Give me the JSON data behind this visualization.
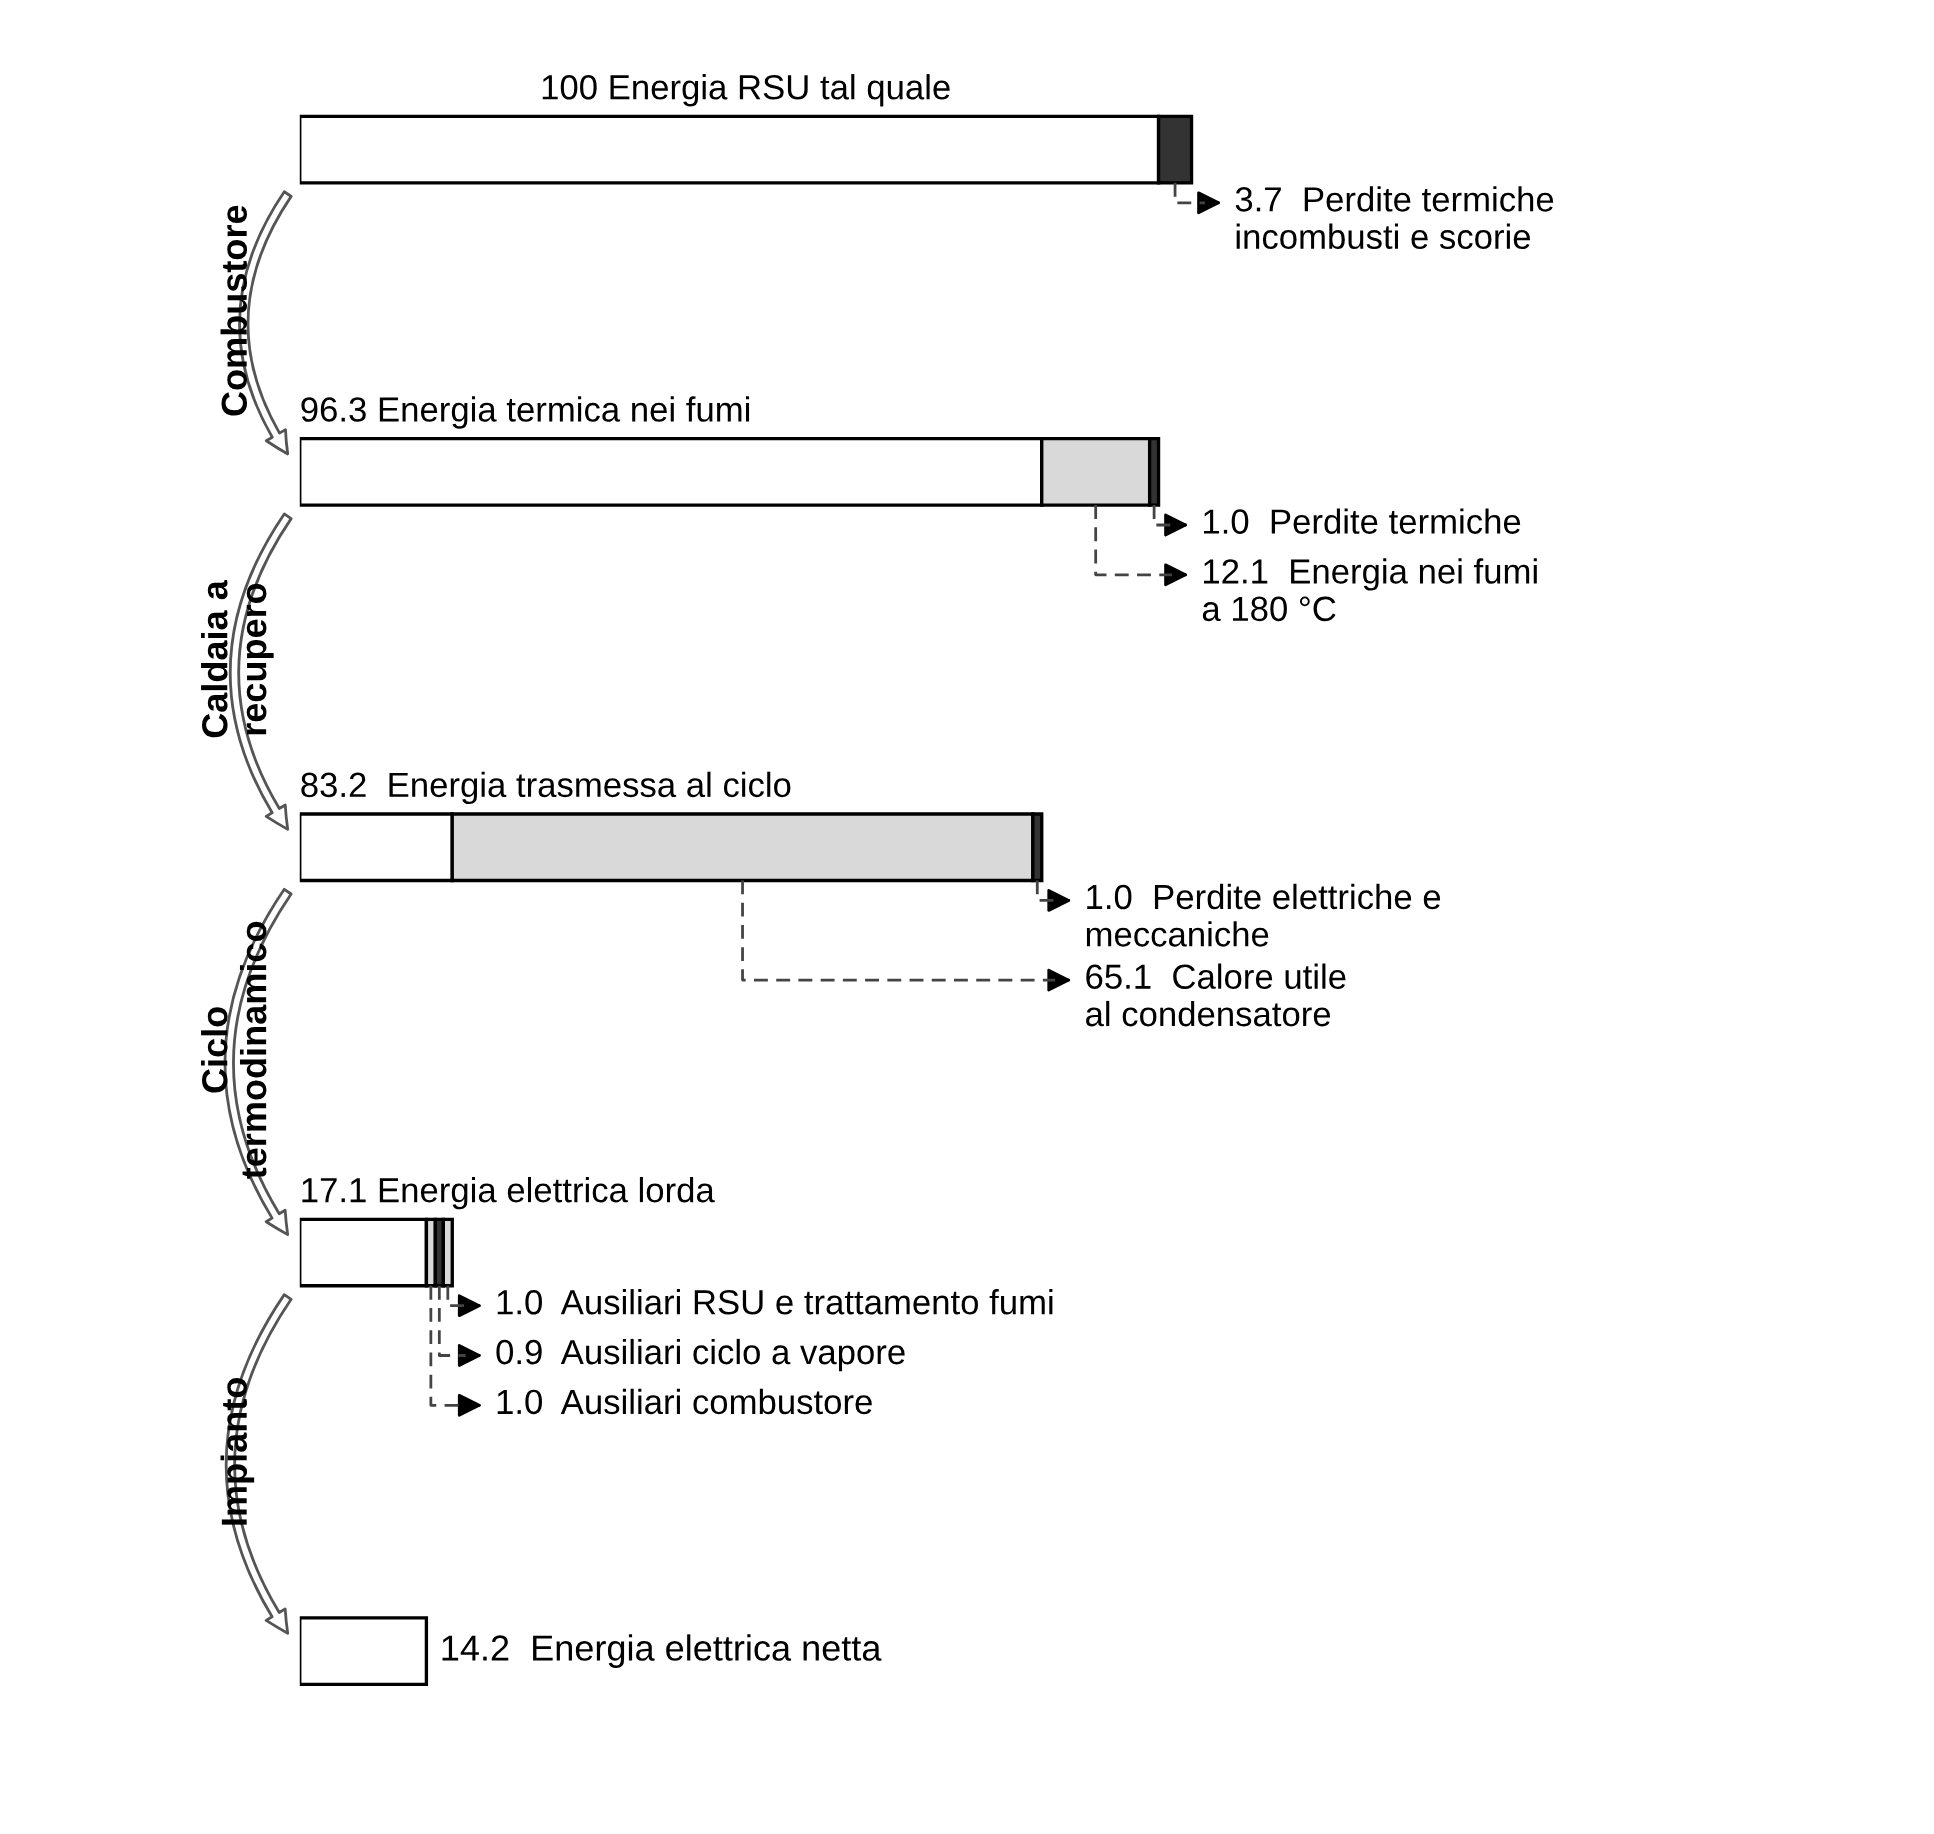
{
  "chart_data": {
    "type": "bar",
    "orientation": "horizontal",
    "stacked": true,
    "categories": [
      null,
      null,
      null,
      null,
      null
    ],
    "series": [
      {
        "color": "#ffffff",
        "values": [
          96.3,
          83.2,
          17.1,
          14.2,
          14.2
        ]
      },
      {
        "color": "#d9d9d9",
        "values": [
          null,
          12.1,
          65.1,
          1.0,
          null
        ],
        "value_labels": [
          null,
          "12.1  Energia nei fumi\na 180 °C",
          "65.1  Calore utile\nal condensatore",
          "1.0  Ausiliari combustore",
          null
        ]
      },
      {
        "color": "#333333",
        "values": [
          3.7,
          1.0,
          1.0,
          0.9,
          null
        ],
        "value_labels": [
          "3.7  Perdite termiche\nincombusti e scorie",
          "1.0  Perdite termiche",
          "1.0  Perdite elettriche e\nmeccaniche",
          "0.9  Ausiliari ciclo a vapore",
          null
        ]
      },
      {
        "color": "#d9d9d9",
        "values": [
          null,
          null,
          null,
          1.0,
          null
        ],
        "value_labels": [
          null,
          null,
          null,
          "1.0  Ausiliari RSU e trattamento fumi",
          null
        ]
      }
    ],
    "totals": [
      "100 Energia RSU tal quale",
      "96.3 Energia termica nei fumi",
      "83.2  Energia trasmessa al ciclo",
      "17.1 Energia elettrica lorda",
      "14.2  Energia elettrica netta"
    ],
    "annotations": [
      "Combustore",
      "Caldaia a\nrecupero",
      "Ciclo\ntermodinamico",
      "Impianto"
    ]
  }
}
